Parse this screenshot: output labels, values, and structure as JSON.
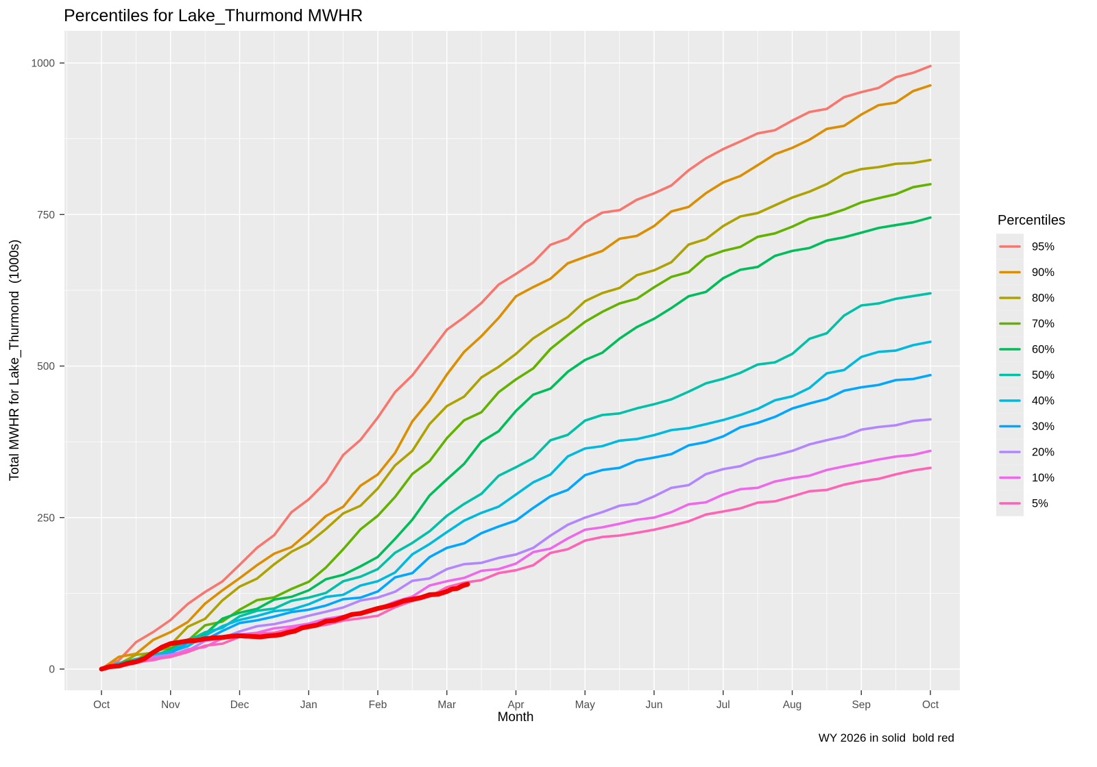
{
  "colors": {
    "panel_bg": "#EBEBEB",
    "grid": "#FFFFFF",
    "tick_text": "#4D4D4D",
    "tick_mark": "#333333",
    "text": "#000000",
    "highlight_red": "#F50000"
  },
  "chart_data": {
    "type": "line",
    "title": "Percentiles for Lake_Thurmond MWHR",
    "xlabel": "Month",
    "ylabel": "Total MWHR for Lake_Thurmond  (1000s)",
    "note": "WY 2026 in solid  bold red",
    "legend_title": "Percentiles",
    "legend_position": "right",
    "grid": true,
    "ylim": [
      0,
      1000
    ],
    "y_ticks": [
      0,
      250,
      500,
      750,
      1000
    ],
    "x_tick_labels": [
      "Oct",
      "Nov",
      "Dec",
      "Jan",
      "Feb",
      "Mar",
      "Apr",
      "May",
      "Jun",
      "Jul",
      "Aug",
      "Sep",
      "Oct"
    ],
    "x_months": [
      0,
      1,
      2,
      3,
      4,
      5,
      6,
      7,
      8,
      9,
      10,
      11,
      12
    ],
    "units": "thousands of MWHR, cumulative over water year",
    "series": [
      {
        "name": "95%",
        "color": "#F8766D",
        "values": [
          0,
          81,
          172,
          280,
          415,
          560,
          652,
          737,
          785,
          858,
          905,
          952,
          995
        ]
      },
      {
        "name": "90%",
        "color": "#DB8E00",
        "values": [
          0,
          61,
          150,
          226,
          321,
          486,
          615,
          680,
          731,
          803,
          860,
          915,
          963
        ]
      },
      {
        "name": "80%",
        "color": "#AEA200",
        "values": [
          0,
          40,
          136,
          208,
          298,
          434,
          520,
          607,
          658,
          731,
          778,
          825,
          840
        ]
      },
      {
        "name": "70%",
        "color": "#64B200",
        "values": [
          0,
          35,
          98,
          144,
          253,
          381,
          478,
          573,
          630,
          690,
          730,
          770,
          800
        ]
      },
      {
        "name": "60%",
        "color": "#00BD5C",
        "values": [
          0,
          32,
          93,
          130,
          185,
          313,
          426,
          510,
          578,
          645,
          690,
          720,
          745
        ]
      },
      {
        "name": "50%",
        "color": "#00C1A7",
        "values": [
          0,
          30,
          87,
          118,
          165,
          253,
          333,
          410,
          437,
          479,
          520,
          600,
          620
        ]
      },
      {
        "name": "40%",
        "color": "#00BADE",
        "values": [
          0,
          28,
          81,
          107,
          145,
          226,
          288,
          364,
          386,
          411,
          450,
          515,
          540
        ]
      },
      {
        "name": "30%",
        "color": "#00A6FF",
        "values": [
          0,
          26,
          76,
          98,
          128,
          200,
          245,
          320,
          349,
          384,
          430,
          465,
          485
        ]
      },
      {
        "name": "20%",
        "color": "#B385FF",
        "values": [
          0,
          24,
          62,
          88,
          118,
          165,
          189,
          250,
          285,
          330,
          360,
          395,
          412
        ]
      },
      {
        "name": "10%",
        "color": "#EF67EB",
        "values": [
          0,
          22,
          57,
          75,
          100,
          145,
          174,
          230,
          250,
          288,
          315,
          340,
          360
        ]
      },
      {
        "name": " 5%",
        "color": "#FF63B6",
        "values": [
          0,
          20,
          53,
          70,
          88,
          135,
          163,
          212,
          230,
          260,
          285,
          310,
          332
        ]
      }
    ],
    "highlight_series": {
      "name": "WY 2026",
      "color": "#F50000",
      "style": "solid bold",
      "x": [
        0,
        0.5,
        1,
        1.5,
        2,
        2.3,
        2.6,
        3,
        3.5,
        4,
        4.5,
        5,
        5.3
      ],
      "values": [
        0,
        12,
        42,
        50,
        55,
        53,
        57,
        70,
        85,
        100,
        115,
        128,
        140
      ]
    }
  }
}
